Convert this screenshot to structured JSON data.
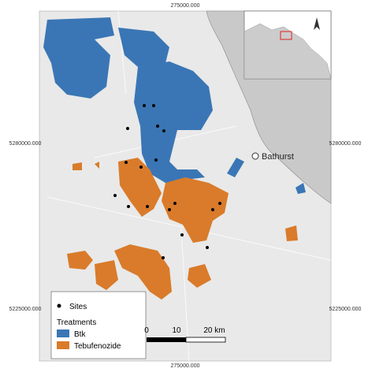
{
  "map": {
    "coordinates": {
      "top": "275000.000",
      "bottom": "275000.000",
      "left_upper": "5280000.000",
      "right_upper": "5280000.000",
      "left_lower": "5225000.000",
      "right_lower": "5225000.000"
    },
    "place_label": "Bathurst",
    "legend": {
      "sites": "Sites",
      "treatments_title": "Treatments",
      "treatments": [
        "Btk",
        "Tebufenozide"
      ]
    },
    "scale_bar": [
      "0",
      "10",
      "20 km"
    ]
  }
}
